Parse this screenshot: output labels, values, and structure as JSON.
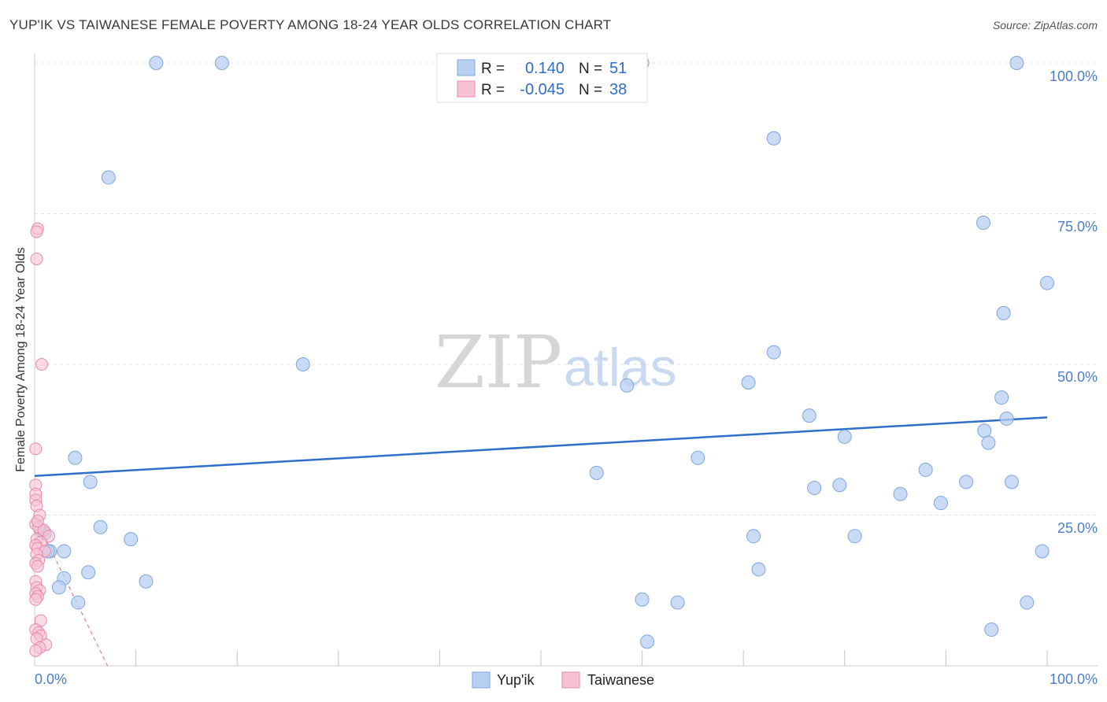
{
  "title": "YUP'IK VS TAIWANESE FEMALE POVERTY AMONG 18-24 YEAR OLDS CORRELATION CHART",
  "source": "Source: ZipAtlas.com",
  "watermark": {
    "zip": "ZIP",
    "atlas": "atlas"
  },
  "colors": {
    "yupik_fill": "#b8d0f2",
    "yupik_stroke": "#7fa6de",
    "yupik_line": "#2f6fc8",
    "taiwanese_fill": "#f7c3d3",
    "taiwanese_stroke": "#e98aa8",
    "taiwanese_line": "#e06690",
    "tick_text": "#4a7fc8",
    "grid": "#e6e6e6"
  },
  "stats": {
    "row1": {
      "r_label": "R =",
      "r_value": "0.140",
      "n_label": "N =",
      "n_value": "51"
    },
    "row2": {
      "r_label": "R =",
      "r_value": "-0.045",
      "n_label": "N =",
      "n_value": "38"
    }
  },
  "legend": {
    "yupik": "Yup'ik",
    "taiwanese": "Taiwanese"
  },
  "chart_data": {
    "type": "scatter",
    "ylabel": "Female Poverty Among 18-24 Year Olds",
    "xlabel": "",
    "x_tick_labels": [
      "0.0%",
      "100.0%"
    ],
    "y_tick_labels": [
      "100.0%",
      "75.0%",
      "50.0%",
      "25.0%"
    ],
    "xlim": [
      0,
      100
    ],
    "ylim": [
      0,
      100
    ],
    "grid": true,
    "legend_position": "bottom",
    "series": [
      {
        "name": "Yup'ik",
        "points": [
          [
            12,
            100
          ],
          [
            18.5,
            100
          ],
          [
            60,
            100
          ],
          [
            97,
            100
          ],
          [
            7.3,
            81
          ],
          [
            73,
            87.5
          ],
          [
            93.7,
            73.5
          ],
          [
            100,
            63.5
          ],
          [
            95.7,
            58.5
          ],
          [
            26.5,
            50
          ],
          [
            73,
            52
          ],
          [
            58.5,
            46.5
          ],
          [
            70.5,
            47
          ],
          [
            95.5,
            44.5
          ],
          [
            76.5,
            41.5
          ],
          [
            96,
            41
          ],
          [
            80,
            38
          ],
          [
            93.8,
            39
          ],
          [
            94.2,
            37
          ],
          [
            4,
            34.5
          ],
          [
            65.5,
            34.5
          ],
          [
            5.5,
            30.5
          ],
          [
            55.5,
            32
          ],
          [
            77,
            29.5
          ],
          [
            79.5,
            30
          ],
          [
            85.5,
            28.5
          ],
          [
            88,
            32.5
          ],
          [
            89.5,
            27
          ],
          [
            92,
            30.5
          ],
          [
            96.5,
            30.5
          ],
          [
            0.6,
            22.5
          ],
          [
            1.0,
            22
          ],
          [
            1.5,
            19
          ],
          [
            2.9,
            19
          ],
          [
            6.5,
            23
          ],
          [
            9.5,
            21
          ],
          [
            71,
            21.5
          ],
          [
            81,
            21.5
          ],
          [
            99.5,
            19
          ],
          [
            2.9,
            14.5
          ],
          [
            2.4,
            13
          ],
          [
            5.3,
            15.5
          ],
          [
            11,
            14
          ],
          [
            71.5,
            16
          ],
          [
            4.3,
            10.5
          ],
          [
            60,
            11
          ],
          [
            63.5,
            10.5
          ],
          [
            98,
            10.5
          ],
          [
            94.5,
            6
          ],
          [
            60.5,
            4
          ],
          [
            1.3,
            19
          ]
        ]
      },
      {
        "name": "Taiwanese",
        "points": [
          [
            0.3,
            72.5
          ],
          [
            0.2,
            72
          ],
          [
            0.2,
            67.5
          ],
          [
            0.7,
            50
          ],
          [
            0.1,
            36
          ],
          [
            0.1,
            30
          ],
          [
            0.1,
            28.5
          ],
          [
            0.1,
            27.5
          ],
          [
            0.2,
            26.5
          ],
          [
            0.5,
            25
          ],
          [
            0.1,
            23.5
          ],
          [
            0.4,
            23
          ],
          [
            0.9,
            22.5
          ],
          [
            1.4,
            21.5
          ],
          [
            0.2,
            21
          ],
          [
            0.6,
            20.5
          ],
          [
            0.1,
            20
          ],
          [
            0.3,
            19.5
          ],
          [
            1.0,
            19
          ],
          [
            0.2,
            18.5
          ],
          [
            0.4,
            17.5
          ],
          [
            0.1,
            17
          ],
          [
            0.3,
            16.5
          ],
          [
            0.1,
            14
          ],
          [
            0.2,
            13
          ],
          [
            0.5,
            12.5
          ],
          [
            0.1,
            12
          ],
          [
            0.3,
            11.5
          ],
          [
            0.1,
            11
          ],
          [
            0.6,
            7.5
          ],
          [
            0.1,
            6
          ],
          [
            0.4,
            5.5
          ],
          [
            0.6,
            5
          ],
          [
            0.2,
            4.5
          ],
          [
            1.1,
            3.5
          ],
          [
            0.5,
            3
          ],
          [
            0.1,
            2.5
          ],
          [
            0.3,
            24
          ]
        ]
      }
    ],
    "trendlines": [
      {
        "series": "Yup'ik",
        "x": [
          0,
          100
        ],
        "y": [
          31.5,
          41.2
        ]
      },
      {
        "series": "Taiwanese",
        "x": [
          0,
          7.2
        ],
        "y": [
          24.8,
          0
        ]
      }
    ]
  }
}
